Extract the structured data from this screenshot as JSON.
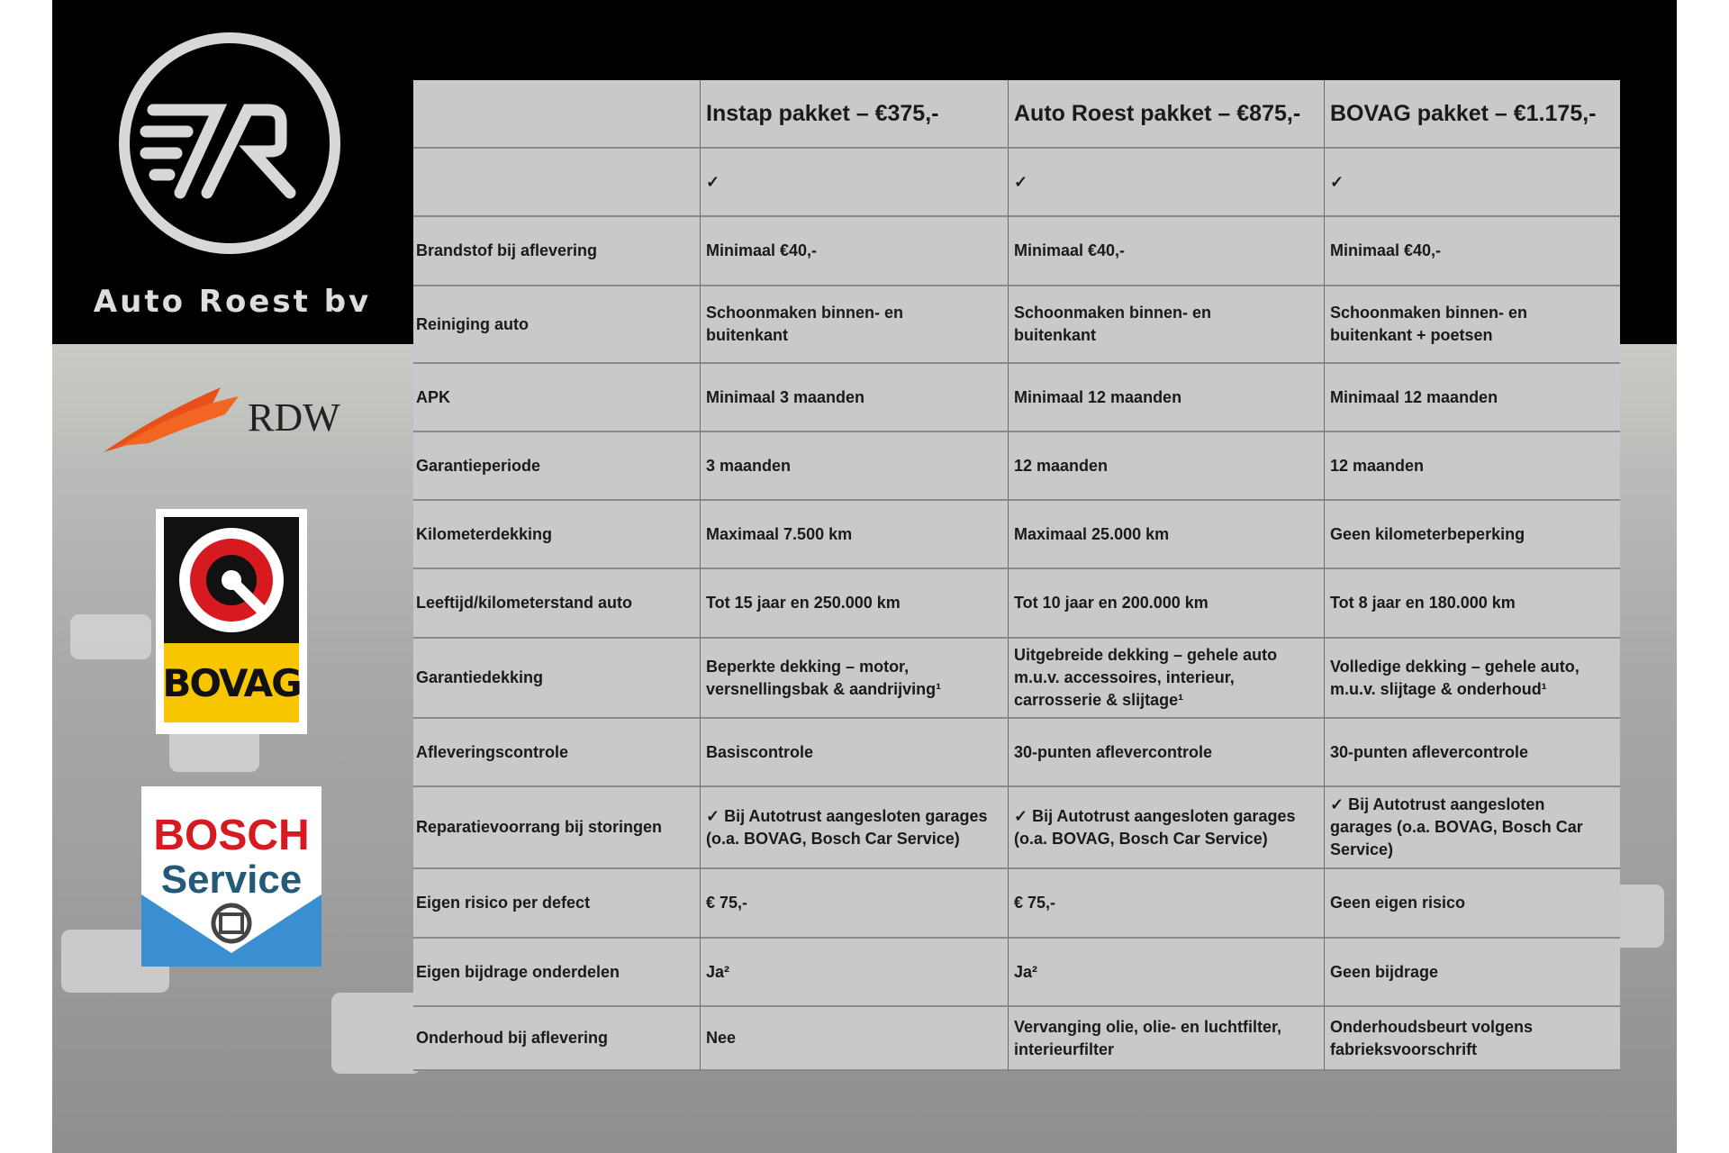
{
  "brand": {
    "name": "Auto Roest bv",
    "logos": [
      "RDW",
      "BOVAG",
      "BOSCH Service"
    ]
  },
  "table": {
    "headers": [
      "",
      "Instap pakket – €375,-",
      "Auto Roest pakket – €875,-",
      "BOVAG pakket – €1.175,-"
    ],
    "rows": [
      [
        "",
        "✓",
        "✓",
        "✓"
      ],
      [
        "Brandstof bij aflevering",
        "Minimaal €40,-",
        "Minimaal €40,-",
        "Minimaal €40,-"
      ],
      [
        "Reiniging auto",
        "Schoonmaken binnen- en\nbuitenkant",
        "Schoonmaken binnen- en\nbuitenkant",
        "Schoonmaken binnen- en\nbuitenkant + poetsen"
      ],
      [
        "APK",
        "Minimaal 3 maanden",
        "Minimaal 12 maanden",
        "Minimaal 12 maanden"
      ],
      [
        "Garantieperiode",
        "3 maanden",
        "12 maanden",
        "12 maanden"
      ],
      [
        "Kilometerdekking",
        "Maximaal 7.500 km",
        "Maximaal 25.000 km",
        "Geen kilometerbeperking"
      ],
      [
        "Leeftijd/kilometerstand auto",
        "Tot 15 jaar en 250.000 km",
        "Tot 10 jaar en 200.000 km",
        "Tot 8 jaar en 180.000 km"
      ],
      [
        "Garantiedekking",
        "Beperkte dekking – motor,\nversnellingsbak & aandrijving¹",
        "Uitgebreide dekking – gehele auto\nm.u.v. accessoires, interieur,\ncarrosserie & slijtage¹",
        "Volledige dekking – gehele auto,\nm.u.v. slijtage & onderhoud¹"
      ],
      [
        "Afleveringscontrole",
        "Basiscontrole",
        "30-punten aflevercontrole",
        "30-punten aflevercontrole"
      ],
      [
        "Reparatievoorrang bij storingen",
        "✓ Bij Autotrust aangesloten garages\n(o.a. BOVAG, Bosch Car Service)",
        "✓ Bij Autotrust aangesloten garages\n(o.a. BOVAG, Bosch Car Service)",
        "✓ Bij Autotrust aangesloten\ngarages (o.a. BOVAG, Bosch Car\nService)"
      ],
      [
        "Eigen risico per defect",
        "€ 75,-",
        "€ 75,-",
        "Geen eigen risico"
      ],
      [
        "Eigen bijdrage onderdelen",
        "Ja²",
        "Ja²",
        "Geen bijdrage"
      ],
      [
        "Onderhoud bij aflevering",
        "Nee",
        "Vervanging olie, olie- en luchtfilter,\ninterieurfilter",
        "Onderhoudsbeurt volgens\nfabrieksvoorschrift"
      ]
    ]
  }
}
